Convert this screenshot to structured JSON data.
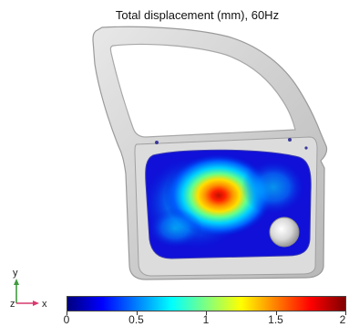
{
  "title": "Total displacement (mm), 60Hz",
  "colorbar": {
    "min": 0,
    "max": 2,
    "tick_labels": [
      "0",
      "0.5",
      "1",
      "1.5",
      "2"
    ],
    "stops": [
      "#00007f",
      "#0000ff",
      "#0080ff",
      "#00ffff",
      "#80ff80",
      "#ffff00",
      "#ff8000",
      "#ff0000",
      "#7f0000"
    ]
  },
  "triad": {
    "x_label": "x",
    "y_label": "y",
    "z_label": "z",
    "x_color": "#d63a6e",
    "y_color": "#3f9a3f"
  },
  "colors": {
    "door_frame": "#cfcfcf",
    "door_edge": "#9a9a9a",
    "panel_cold": "#1010d8",
    "hotspot_peak": "#c41a00"
  }
}
